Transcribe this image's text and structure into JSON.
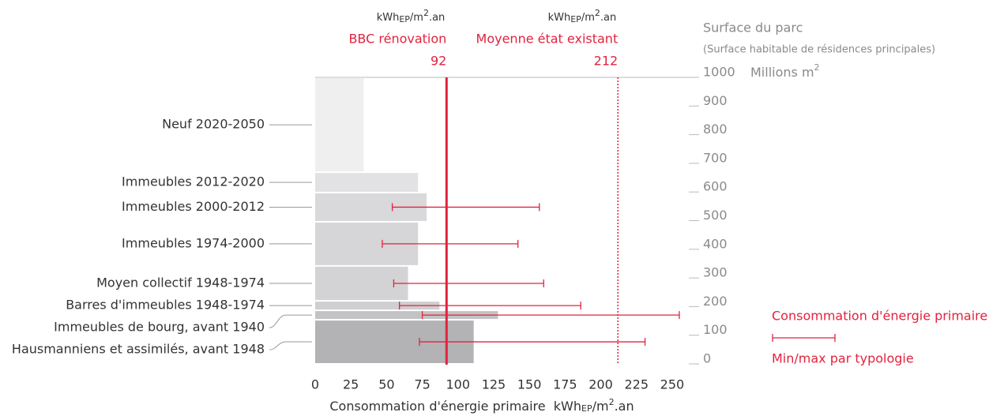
{
  "chart_data": {
    "type": "bar",
    "orientation": "horizontal-variable-width",
    "categories": [
      "Hausmanniens et assimilés, avant 1948",
      "Immeubles de bourg, avant 1940",
      "Barres d'immeubles 1948-1974",
      "Moyen collectif 1948-1974",
      "Immeubles 1974-2000",
      "Immeubles 2000-2012",
      "Immeubles 2012-2020",
      "Neuf 2020-2050"
    ],
    "values": [
      111,
      128,
      87,
      65,
      72,
      78,
      72,
      34
    ],
    "surface": [
      154,
      33,
      33,
      122,
      154,
      102,
      71,
      331
    ],
    "min": [
      73,
      75,
      59,
      55,
      47,
      54,
      null,
      null
    ],
    "max": [
      231,
      255,
      186,
      160,
      142,
      157,
      null,
      null
    ],
    "colors": [
      "#b3b2b4",
      "#c3c2c4",
      "#cfced0",
      "#d3d2d4",
      "#d6d5d7",
      "#d9d8da",
      "#e2e1e3",
      "#efefef"
    ],
    "error_color": "#e2233d",
    "xlim": [
      0,
      260
    ],
    "xticks": [
      0,
      25,
      50,
      75,
      100,
      125,
      150,
      175,
      200,
      225,
      250
    ],
    "ylim": [
      0,
      1000
    ],
    "yticks": [
      0,
      100,
      200,
      300,
      400,
      500,
      600,
      700,
      800,
      900,
      1000
    ],
    "x_label": "Consommation d'énergie primaire",
    "unit": {
      "base": "kWh",
      "sub": "EP",
      "mid": "/m",
      "sup": "2",
      "end": ".an"
    },
    "y_label": "Surface du parc",
    "y_sublabel": "(Surface habitable de résidences principales)",
    "y_unit": {
      "base": "Millions m",
      "sup": "2"
    },
    "reference_lines": [
      {
        "label": "BBC rénovation",
        "value": 92,
        "style": "solid"
      },
      {
        "label": "Moyenne état existant",
        "value": 212,
        "style": "dotted"
      }
    ],
    "legend": {
      "bar": "Consommation d'énergie primaire",
      "error": "Min/max par typologie"
    }
  }
}
